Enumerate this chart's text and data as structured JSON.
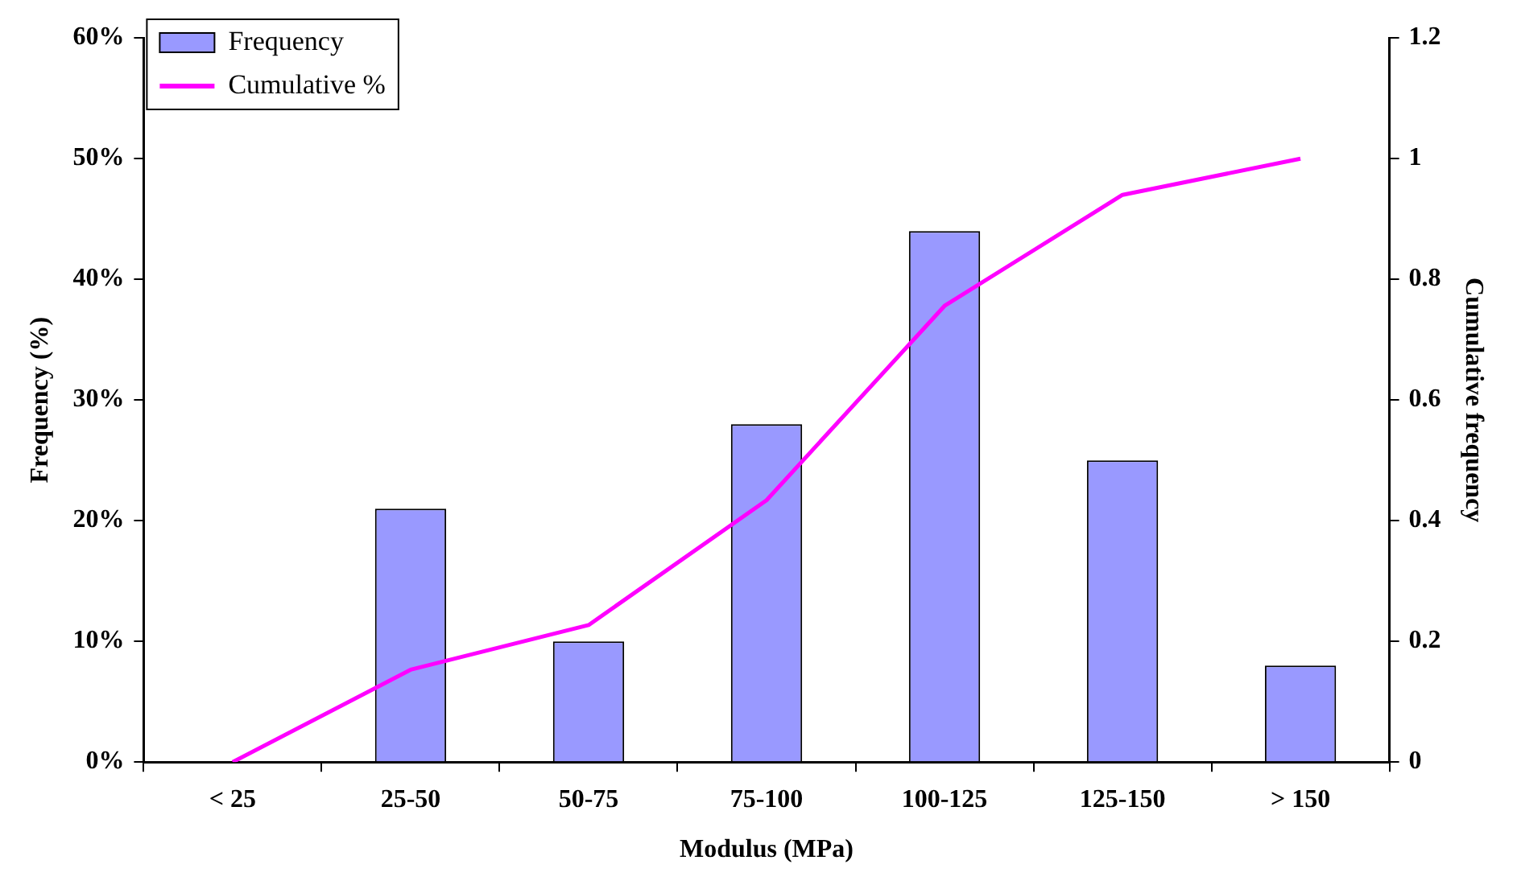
{
  "chart_data": {
    "type": "bar",
    "xlabel": "Modulus (MPa)",
    "ylabel": "Frequency (%)",
    "y2label": "Cumulative frequency",
    "categories": [
      "< 25",
      "25-50",
      "50-75",
      "75-100",
      "100-125",
      "125-150",
      "> 150"
    ],
    "series": [
      {
        "name": "Frequency",
        "color": "#9999ff",
        "values": [
          0,
          21,
          10,
          28,
          44,
          25,
          8
        ]
      },
      {
        "name": "Cumulative %",
        "type": "line",
        "axis": "y2",
        "color": "#ff00ff",
        "values": [
          0,
          0.153,
          0.227,
          0.434,
          0.756,
          0.94,
          1.0
        ]
      }
    ],
    "ylim": [
      0,
      60
    ],
    "yticks": [
      {
        "value": 0,
        "label": "0%"
      },
      {
        "value": 10,
        "label": "10%"
      },
      {
        "value": 20,
        "label": "20%"
      },
      {
        "value": 30,
        "label": "30%"
      },
      {
        "value": 40,
        "label": "40%"
      },
      {
        "value": 50,
        "label": "50%"
      },
      {
        "value": 60,
        "label": "60%"
      }
    ],
    "y2lim": [
      0,
      1.2
    ],
    "y2ticks": [
      0,
      0.2,
      0.4,
      0.6,
      0.8,
      1,
      1.2
    ],
    "grid": false,
    "legend": "top left",
    "marker": "none"
  }
}
